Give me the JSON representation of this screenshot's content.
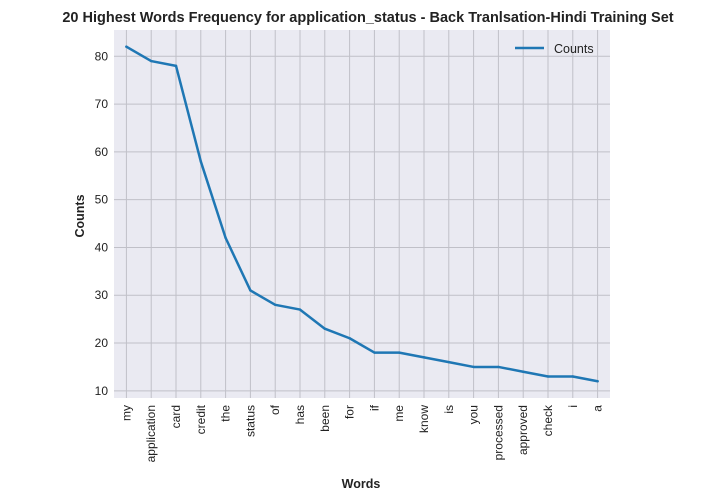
{
  "chart_data": {
    "type": "line",
    "title": "20 Highest Words Frequency for application_status - Back Tranlsation-Hindi Training Set",
    "xlabel": "Words",
    "ylabel": "Counts",
    "categories": [
      "my",
      "application",
      "card",
      "credit",
      "the",
      "status",
      "of",
      "has",
      "been",
      "for",
      "if",
      "me",
      "know",
      "is",
      "you",
      "processed",
      "approved",
      "check",
      "i",
      "a"
    ],
    "series": [
      {
        "name": "Counts",
        "values": [
          82,
          79,
          78,
          58,
          42,
          31,
          28,
          27,
          23,
          21,
          18,
          18,
          17,
          16,
          15,
          15,
          14,
          13,
          13,
          12
        ]
      }
    ],
    "ylim": [
      8.5,
      85.5
    ],
    "yticks": [
      10,
      20,
      30,
      40,
      50,
      60,
      70,
      80
    ],
    "grid": true,
    "legend_position": "top-right",
    "colors": {
      "line": "#1f77b4",
      "background": "#eaeaf2",
      "grid": "#c0c0c8"
    }
  }
}
